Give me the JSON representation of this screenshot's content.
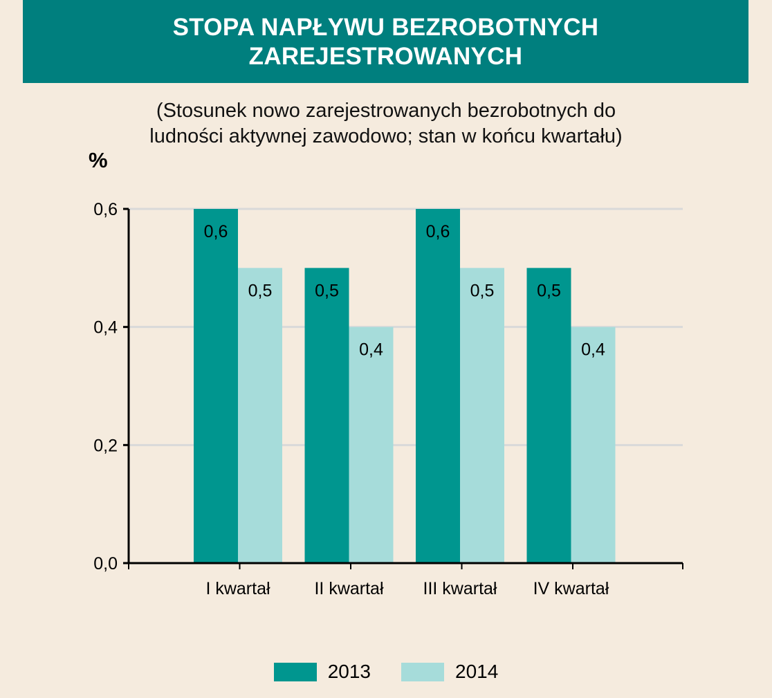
{
  "title_lines": [
    "STOPA NAPŁYWU BEZROBOTNYCH",
    "ZAREJESTROWANYCH"
  ],
  "subtitle_lines": [
    "(Stosunek nowo zarejestrowanych bezrobotnych do",
    "ludności aktywnej zawodowo; stan w końcu kwartału)"
  ],
  "colors": {
    "background": "#f5ebde",
    "title_band": "#007f7e",
    "series_2013": "#00968f",
    "series_2014": "#a6dcda",
    "gridline": "#d9d9d9",
    "axis": "#000000"
  },
  "chart_data": {
    "type": "bar",
    "title": "STOPA NAPŁYWU BEZROBOTNYCH ZAREJESTROWANYCH",
    "subtitle": "(Stosunek nowo zarejestrowanych bezrobotnych do ludności aktywnej zawodowo; stan w końcu kwartału)",
    "ylabel": "%",
    "xlabel": "",
    "ylim": [
      0,
      0.6
    ],
    "yticks": [
      "0,0",
      "0,2",
      "0,4",
      "0,6"
    ],
    "ytick_values": [
      0,
      0.2,
      0.4,
      0.6
    ],
    "grid": true,
    "legend_position": "bottom",
    "categories": [
      "I kwartał",
      "II kwartał",
      "III kwartał",
      "IV kwartał"
    ],
    "series": [
      {
        "name": "2013",
        "values": [
          0.6,
          0.5,
          0.6,
          0.5
        ],
        "labels": [
          "0,6",
          "0,5",
          "0,6",
          "0,5"
        ]
      },
      {
        "name": "2014",
        "values": [
          0.5,
          0.4,
          0.5,
          0.4
        ],
        "labels": [
          "0,5",
          "0,4",
          "0,5",
          "0,4"
        ]
      }
    ]
  }
}
